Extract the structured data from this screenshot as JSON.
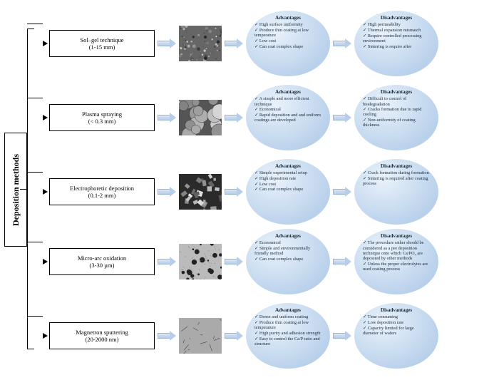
{
  "root_label": "Deposition methods",
  "adv_title": "Advantages",
  "dis_title": "Disadvantages",
  "row_top": [
    14,
    118,
    222,
    320,
    424
  ],
  "stub_top": [
    33,
    137,
    241,
    339,
    443
  ],
  "colors": {
    "circle_grad_inner": "#eaf2fb",
    "circle_grad_mid": "#cfe0f2",
    "circle_grad_outer": "#a8c5e6",
    "arrow_light": "#dbe6f5",
    "arrow_dark": "#b8cde8",
    "border": "#000000"
  },
  "methods": [
    {
      "name": "Sol–gel technique",
      "range": "(1-15 mm)",
      "adv": [
        "High surface uniformity",
        "Produce thin coating at low temperature",
        "Low cost",
        "Can coat complex shape"
      ],
      "dis": [
        "High permeability",
        "Thermal expansion mismatch",
        "Require controlled processing environment",
        "Sintering is require after"
      ],
      "texture": "grainy"
    },
    {
      "name": "Plasma spraying",
      "range": "(< 0.3 mm)",
      "adv": [
        "A simple and more efficient technique",
        "Economical",
        "Rapid deposition and and uniform coatings are developed"
      ],
      "dis": [
        "Difficult to control of biodegradation",
        "Cracks formation due to rapid cooling",
        "Non-uniformity of coating thickness"
      ],
      "texture": "globular"
    },
    {
      "name": "Electrophoretic deposition",
      "range": "(0.1-2 mm)",
      "adv": [
        "Simple experimental setup",
        "High deposition rate",
        "Low cost",
        "Can coat complex shape"
      ],
      "dis": [
        "Crack formation during formation",
        "Sintering is required after coating process"
      ],
      "texture": "crystalline"
    },
    {
      "name": "Micro-arc oxidation",
      "range": "(3-30 µm)",
      "adv": [
        "Economical",
        "Simple and environmentally friendly method",
        "Can coat complex shape"
      ],
      "dis": [
        "The procedure rather should be considered as a pre deposition technique onto which Ca/PO₄ are deposited by other methods",
        "Unless the proper electrolytes are used coating process"
      ],
      "texture": "porous"
    },
    {
      "name": "Magnetron sputtering",
      "range": "(20-2000 nm)",
      "adv": [
        "Dense and uniform coating",
        "Produce thin coating at low temperature",
        "High purity and adhesion strength",
        "Easy to control the Ca/P ratio and structure"
      ],
      "dis": [
        "Time consuming",
        "Low deposition rate",
        "Capacity limited for large diameter of wafers"
      ],
      "texture": "cracked"
    }
  ]
}
